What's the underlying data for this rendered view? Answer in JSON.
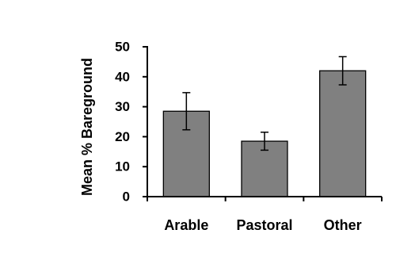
{
  "chart_data": {
    "type": "bar",
    "title": "",
    "xlabel": "",
    "ylabel": "Mean % Bareground",
    "categories": [
      "Arable",
      "Pastoral",
      "Other"
    ],
    "values": [
      28.5,
      18.5,
      42.0
    ],
    "error": [
      6.2,
      3.0,
      4.7
    ],
    "ylim": [
      0,
      50
    ],
    "yticks": [
      0,
      10,
      20,
      30,
      40,
      50
    ],
    "grid": false,
    "legend": "none",
    "bar_color": "#808080",
    "bar_edge_color": "#000000"
  }
}
